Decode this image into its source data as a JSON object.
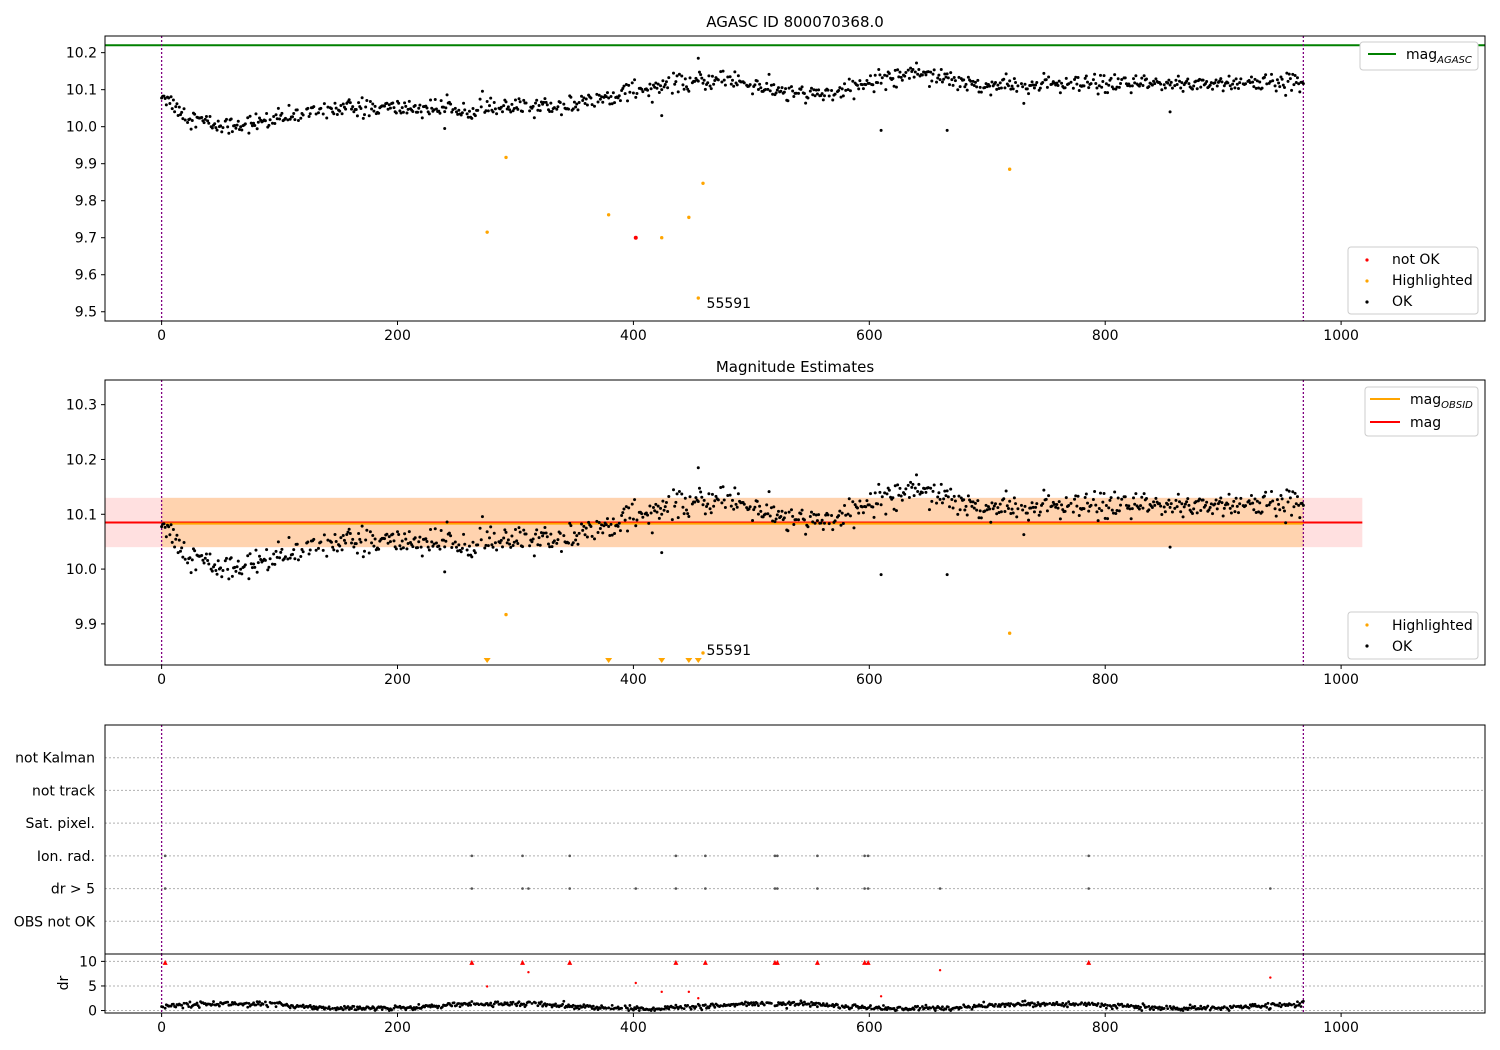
{
  "chart_data": [
    {
      "type": "scatter",
      "title": "AGASC ID 800070368.0",
      "xlim": [
        -48,
        1122
      ],
      "ylim": [
        9.475,
        10.245
      ],
      "xticks": [
        0,
        200,
        400,
        600,
        800,
        1000
      ],
      "yticks": [
        9.5,
        9.6,
        9.7,
        9.8,
        9.9,
        10.0,
        10.1,
        10.2
      ],
      "xtick_labels": [
        "0",
        "200",
        "400",
        "600",
        "800",
        "1000"
      ],
      "ytick_labels": [
        "9.5",
        "9.6",
        "9.7",
        "9.8",
        "9.9",
        "10.0",
        "10.1",
        "10.2"
      ],
      "legend_upper": {
        "location": "upper right",
        "entries": [
          {
            "label": "mag",
            "sub": "AGASC",
            "color": "#008000"
          }
        ]
      },
      "legend_lower": {
        "location": "lower right",
        "entries": [
          {
            "label": "not OK",
            "color": "#ff0000"
          },
          {
            "label": "Highlighted",
            "color": "#ffa500"
          },
          {
            "label": "OK",
            "color": "#000000"
          }
        ]
      },
      "mag_agasc": 10.22,
      "obsid_bounds_x": [
        0,
        968
      ],
      "ok_trend": [
        [
          0,
          10.09
        ],
        [
          20,
          10.03
        ],
        [
          50,
          10.0
        ],
        [
          100,
          10.02
        ],
        [
          140,
          10.05
        ],
        [
          200,
          10.05
        ],
        [
          300,
          10.05
        ],
        [
          350,
          10.06
        ],
        [
          400,
          10.1
        ],
        [
          480,
          10.13
        ],
        [
          530,
          10.09
        ],
        [
          570,
          10.09
        ],
        [
          600,
          10.12
        ],
        [
          640,
          10.15
        ],
        [
          700,
          10.11
        ],
        [
          968,
          10.12
        ]
      ],
      "ok_outliers": [
        [
          240,
          9.995
        ],
        [
          424,
          10.03
        ],
        [
          610,
          9.99
        ],
        [
          666,
          9.99
        ],
        [
          855,
          10.04
        ],
        [
          455,
          10.185
        ]
      ],
      "highlighted": [
        [
          276,
          9.715
        ],
        [
          292,
          9.917
        ],
        [
          379,
          9.762
        ],
        [
          424,
          9.7
        ],
        [
          447,
          9.755
        ],
        [
          455,
          9.537
        ],
        [
          459,
          9.847
        ],
        [
          719,
          9.885
        ]
      ],
      "not_ok": [
        [
          402,
          9.7
        ]
      ],
      "annotation": {
        "text": "55591",
        "x": 462,
        "y": 9.51
      }
    },
    {
      "type": "scatter",
      "title": "Magnitude Estimates",
      "xlim": [
        -48,
        1122
      ],
      "ylim": [
        9.825,
        10.345
      ],
      "xticks": [
        0,
        200,
        400,
        600,
        800,
        1000
      ],
      "yticks": [
        9.9,
        10.0,
        10.1,
        10.2,
        10.3
      ],
      "xtick_labels": [
        "0",
        "200",
        "400",
        "600",
        "800",
        "1000"
      ],
      "ytick_labels": [
        "9.9",
        "10.0",
        "10.1",
        "10.2",
        "10.3"
      ],
      "legend_upper": {
        "location": "upper right",
        "entries": [
          {
            "label": "mag",
            "sub": "OBSID",
            "color": "#ffa500"
          },
          {
            "label": "mag",
            "sub": "",
            "color": "#ff0000"
          }
        ]
      },
      "legend_lower": {
        "location": "lower right",
        "entries": [
          {
            "label": "Highlighted",
            "color": "#ffa500"
          },
          {
            "label": "OK",
            "color": "#000000"
          }
        ]
      },
      "mag_line": 10.085,
      "mag_obsid_line": 10.083,
      "band_mag": [
        10.04,
        10.13
      ],
      "band_obsid": [
        10.04,
        10.13
      ],
      "band_x_range": [
        -48,
        1018
      ],
      "obsid_bounds_x": [
        0,
        968
      ],
      "highlighted": [
        [
          292,
          9.917
        ],
        [
          459,
          9.847
        ],
        [
          719,
          9.883
        ]
      ],
      "offscale_markers_x": [
        276,
        379,
        424,
        447,
        455
      ],
      "annotation": {
        "text": "55591",
        "x": 462,
        "y": 9.843
      }
    },
    {
      "type": "scatter",
      "title": "",
      "xlim": [
        -48,
        1122
      ],
      "xticks": [
        0,
        200,
        400,
        600,
        800,
        1000
      ],
      "xtick_labels": [
        "0",
        "200",
        "400",
        "600",
        "800",
        "1000"
      ],
      "flag_rows": [
        "not Kalman",
        "not track",
        "Sat. pixel.",
        "Ion. rad.",
        "dr > 5",
        "OBS not OK"
      ],
      "flag_points": {
        "Ion. rad.": [
          3,
          263,
          306,
          346,
          436,
          461,
          520,
          522,
          556,
          596,
          599,
          786
        ],
        "dr > 5": [
          3,
          263,
          306,
          311,
          346,
          402,
          436,
          461,
          520,
          522,
          556,
          596,
          599,
          660,
          786,
          940
        ]
      },
      "dr_ylabel": "dr",
      "dr_ylim": [
        -0.5,
        11.5
      ],
      "dr_yticks": [
        0,
        5,
        10
      ],
      "dr_ytick_labels": [
        "0",
        "5",
        "10"
      ],
      "dr_high": [
        [
          3,
          9.8
        ],
        [
          263,
          9.8
        ],
        [
          306,
          9.8
        ],
        [
          346,
          9.8
        ],
        [
          436,
          9.8
        ],
        [
          461,
          9.8
        ],
        [
          520,
          9.8
        ],
        [
          522,
          9.8
        ],
        [
          556,
          9.8
        ],
        [
          596,
          9.8
        ],
        [
          599,
          9.8
        ],
        [
          786,
          9.8
        ]
      ],
      "dr_mid": [
        [
          276,
          4.9
        ],
        [
          311,
          7.8
        ],
        [
          402,
          5.6
        ],
        [
          424,
          3.8
        ],
        [
          447,
          3.8
        ],
        [
          660,
          8.2
        ],
        [
          940,
          6.7
        ],
        [
          610,
          2.9
        ],
        [
          455,
          2.5
        ]
      ],
      "obsid_bounds_x": [
        0,
        968
      ]
    }
  ]
}
